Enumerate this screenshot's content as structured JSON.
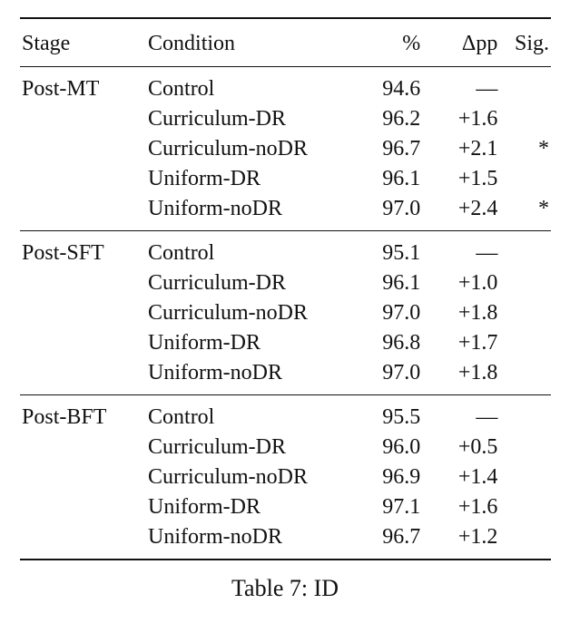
{
  "table": {
    "headers": {
      "stage": "Stage",
      "condition": "Condition",
      "percent": "%",
      "delta_pp": "Δpp",
      "sig": "Sig."
    },
    "groups": [
      {
        "stage": "Post-MT",
        "rows": [
          {
            "condition": "Control",
            "percent": "94.6",
            "delta_pp": "—",
            "sig": ""
          },
          {
            "condition": "Curriculum-DR",
            "percent": "96.2",
            "delta_pp": "+1.6",
            "sig": ""
          },
          {
            "condition": "Curriculum-noDR",
            "percent": "96.7",
            "delta_pp": "+2.1",
            "sig": "*"
          },
          {
            "condition": "Uniform-DR",
            "percent": "96.1",
            "delta_pp": "+1.5",
            "sig": ""
          },
          {
            "condition": "Uniform-noDR",
            "percent": "97.0",
            "delta_pp": "+2.4",
            "sig": "*"
          }
        ]
      },
      {
        "stage": "Post-SFT",
        "rows": [
          {
            "condition": "Control",
            "percent": "95.1",
            "delta_pp": "—",
            "sig": ""
          },
          {
            "condition": "Curriculum-DR",
            "percent": "96.1",
            "delta_pp": "+1.0",
            "sig": ""
          },
          {
            "condition": "Curriculum-noDR",
            "percent": "97.0",
            "delta_pp": "+1.8",
            "sig": ""
          },
          {
            "condition": "Uniform-DR",
            "percent": "96.8",
            "delta_pp": "+1.7",
            "sig": ""
          },
          {
            "condition": "Uniform-noDR",
            "percent": "97.0",
            "delta_pp": "+1.8",
            "sig": ""
          }
        ]
      },
      {
        "stage": "Post-BFT",
        "rows": [
          {
            "condition": "Control",
            "percent": "95.5",
            "delta_pp": "—",
            "sig": ""
          },
          {
            "condition": "Curriculum-DR",
            "percent": "96.0",
            "delta_pp": "+0.5",
            "sig": ""
          },
          {
            "condition": "Curriculum-noDR",
            "percent": "96.9",
            "delta_pp": "+1.4",
            "sig": ""
          },
          {
            "condition": "Uniform-DR",
            "percent": "97.1",
            "delta_pp": "+1.6",
            "sig": ""
          },
          {
            "condition": "Uniform-noDR",
            "percent": "96.7",
            "delta_pp": "+1.2",
            "sig": ""
          }
        ]
      }
    ]
  },
  "caption": "Table 7: ID"
}
